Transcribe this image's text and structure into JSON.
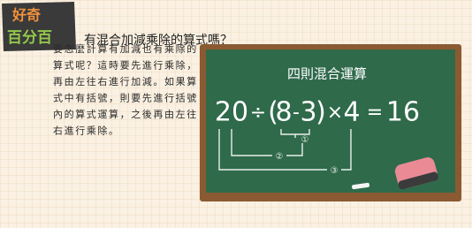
{
  "badge": {
    "line1": "好奇",
    "line2": "百分百"
  },
  "heading": "有混合加減乘除的算式嗎？",
  "paragraph": [
    "要怎麼計算有加減也有乘除的",
    "算式呢？這時要先進行乘除，",
    "再由左往右進行加減。如果算",
    "式中有括號，則要先進行括號",
    "內的算式運算，之後再由左往",
    "右進行乘除。"
  ],
  "board": {
    "title": "四則混合運算",
    "equation": [
      "20",
      "÷",
      "(",
      "8",
      "-",
      "3",
      ")",
      "×",
      "4",
      "=",
      "16"
    ],
    "steps": [
      "①",
      "②",
      "③"
    ]
  }
}
